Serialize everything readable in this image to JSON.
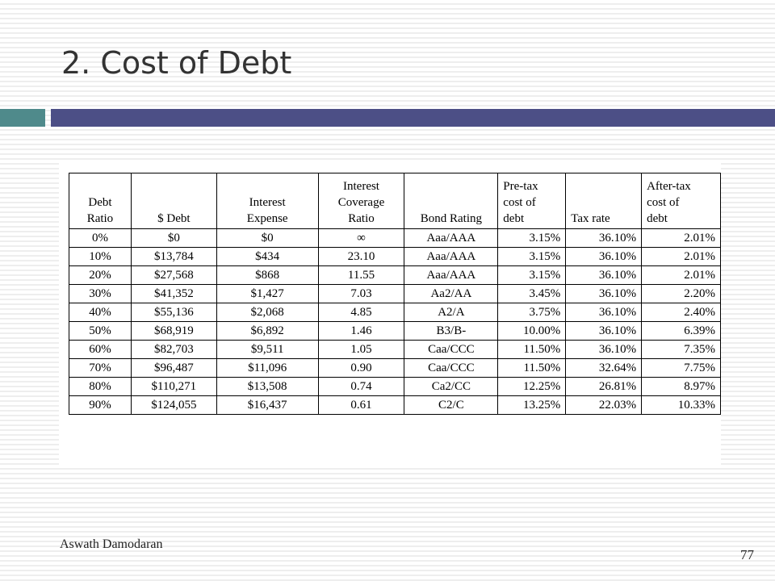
{
  "title": "2. Cost of Debt",
  "table": {
    "headers": [
      "Debt\nRatio",
      "$ Debt",
      "Interest\nExpense",
      "Interest\nCoverage\nRatio",
      "Bond Rating",
      "Pre-tax\ncost of\ndebt",
      "Tax rate",
      "After-tax\ncost of\ndebt"
    ],
    "rows": [
      [
        "0%",
        "$0",
        "$0",
        "∞",
        "Aaa/AAA",
        "3.15%",
        "36.10%",
        "2.01%"
      ],
      [
        "10%",
        "$13,784",
        "$434",
        "23.10",
        "Aaa/AAA",
        "3.15%",
        "36.10%",
        "2.01%"
      ],
      [
        "20%",
        "$27,568",
        "$868",
        "11.55",
        "Aaa/AAA",
        "3.15%",
        "36.10%",
        "2.01%"
      ],
      [
        "30%",
        "$41,352",
        "$1,427",
        "7.03",
        "Aa2/AA",
        "3.45%",
        "36.10%",
        "2.20%"
      ],
      [
        "40%",
        "$55,136",
        "$2,068",
        "4.85",
        "A2/A",
        "3.75%",
        "36.10%",
        "2.40%"
      ],
      [
        "50%",
        "$68,919",
        "$6,892",
        "1.46",
        "B3/B-",
        "10.00%",
        "36.10%",
        "6.39%"
      ],
      [
        "60%",
        "$82,703",
        "$9,511",
        "1.05",
        "Caa/CCC",
        "11.50%",
        "36.10%",
        "7.35%"
      ],
      [
        "70%",
        "$96,487",
        "$11,096",
        "0.90",
        "Caa/CCC",
        "11.50%",
        "32.64%",
        "7.75%"
      ],
      [
        "80%",
        "$110,271",
        "$13,508",
        "0.74",
        "Ca2/CC",
        "12.25%",
        "26.81%",
        "8.97%"
      ],
      [
        "90%",
        "$124,055",
        "$16,437",
        "0.61",
        "C2/C",
        "13.25%",
        "22.03%",
        "10.33%"
      ]
    ]
  },
  "footer": {
    "author": "Aswath Damodaran",
    "page_number": "77"
  }
}
